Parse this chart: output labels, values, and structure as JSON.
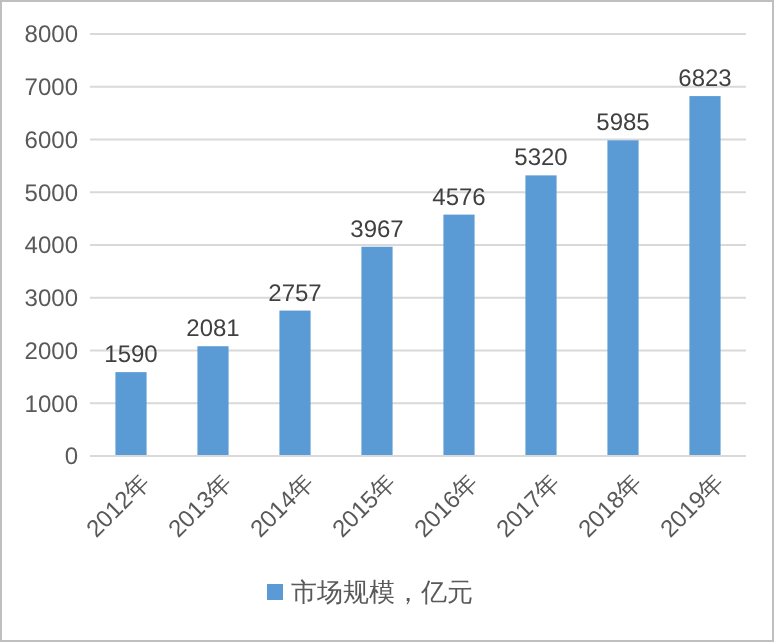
{
  "chart_data": {
    "type": "bar",
    "categories": [
      "2012年",
      "2013年",
      "2014年",
      "2015年",
      "2016年",
      "2017年",
      "2018年",
      "2019年"
    ],
    "series": [
      {
        "name": "市场规模，亿元",
        "color": "#5b9bd5",
        "values": [
          1590,
          2081,
          2757,
          3967,
          4576,
          5320,
          5985,
          6823
        ]
      }
    ],
    "ylim": [
      0,
      8000
    ],
    "yticks": [
      0,
      1000,
      2000,
      3000,
      4000,
      5000,
      6000,
      7000,
      8000
    ],
    "grid": "y",
    "legend": "bottom",
    "data_labels": true
  }
}
